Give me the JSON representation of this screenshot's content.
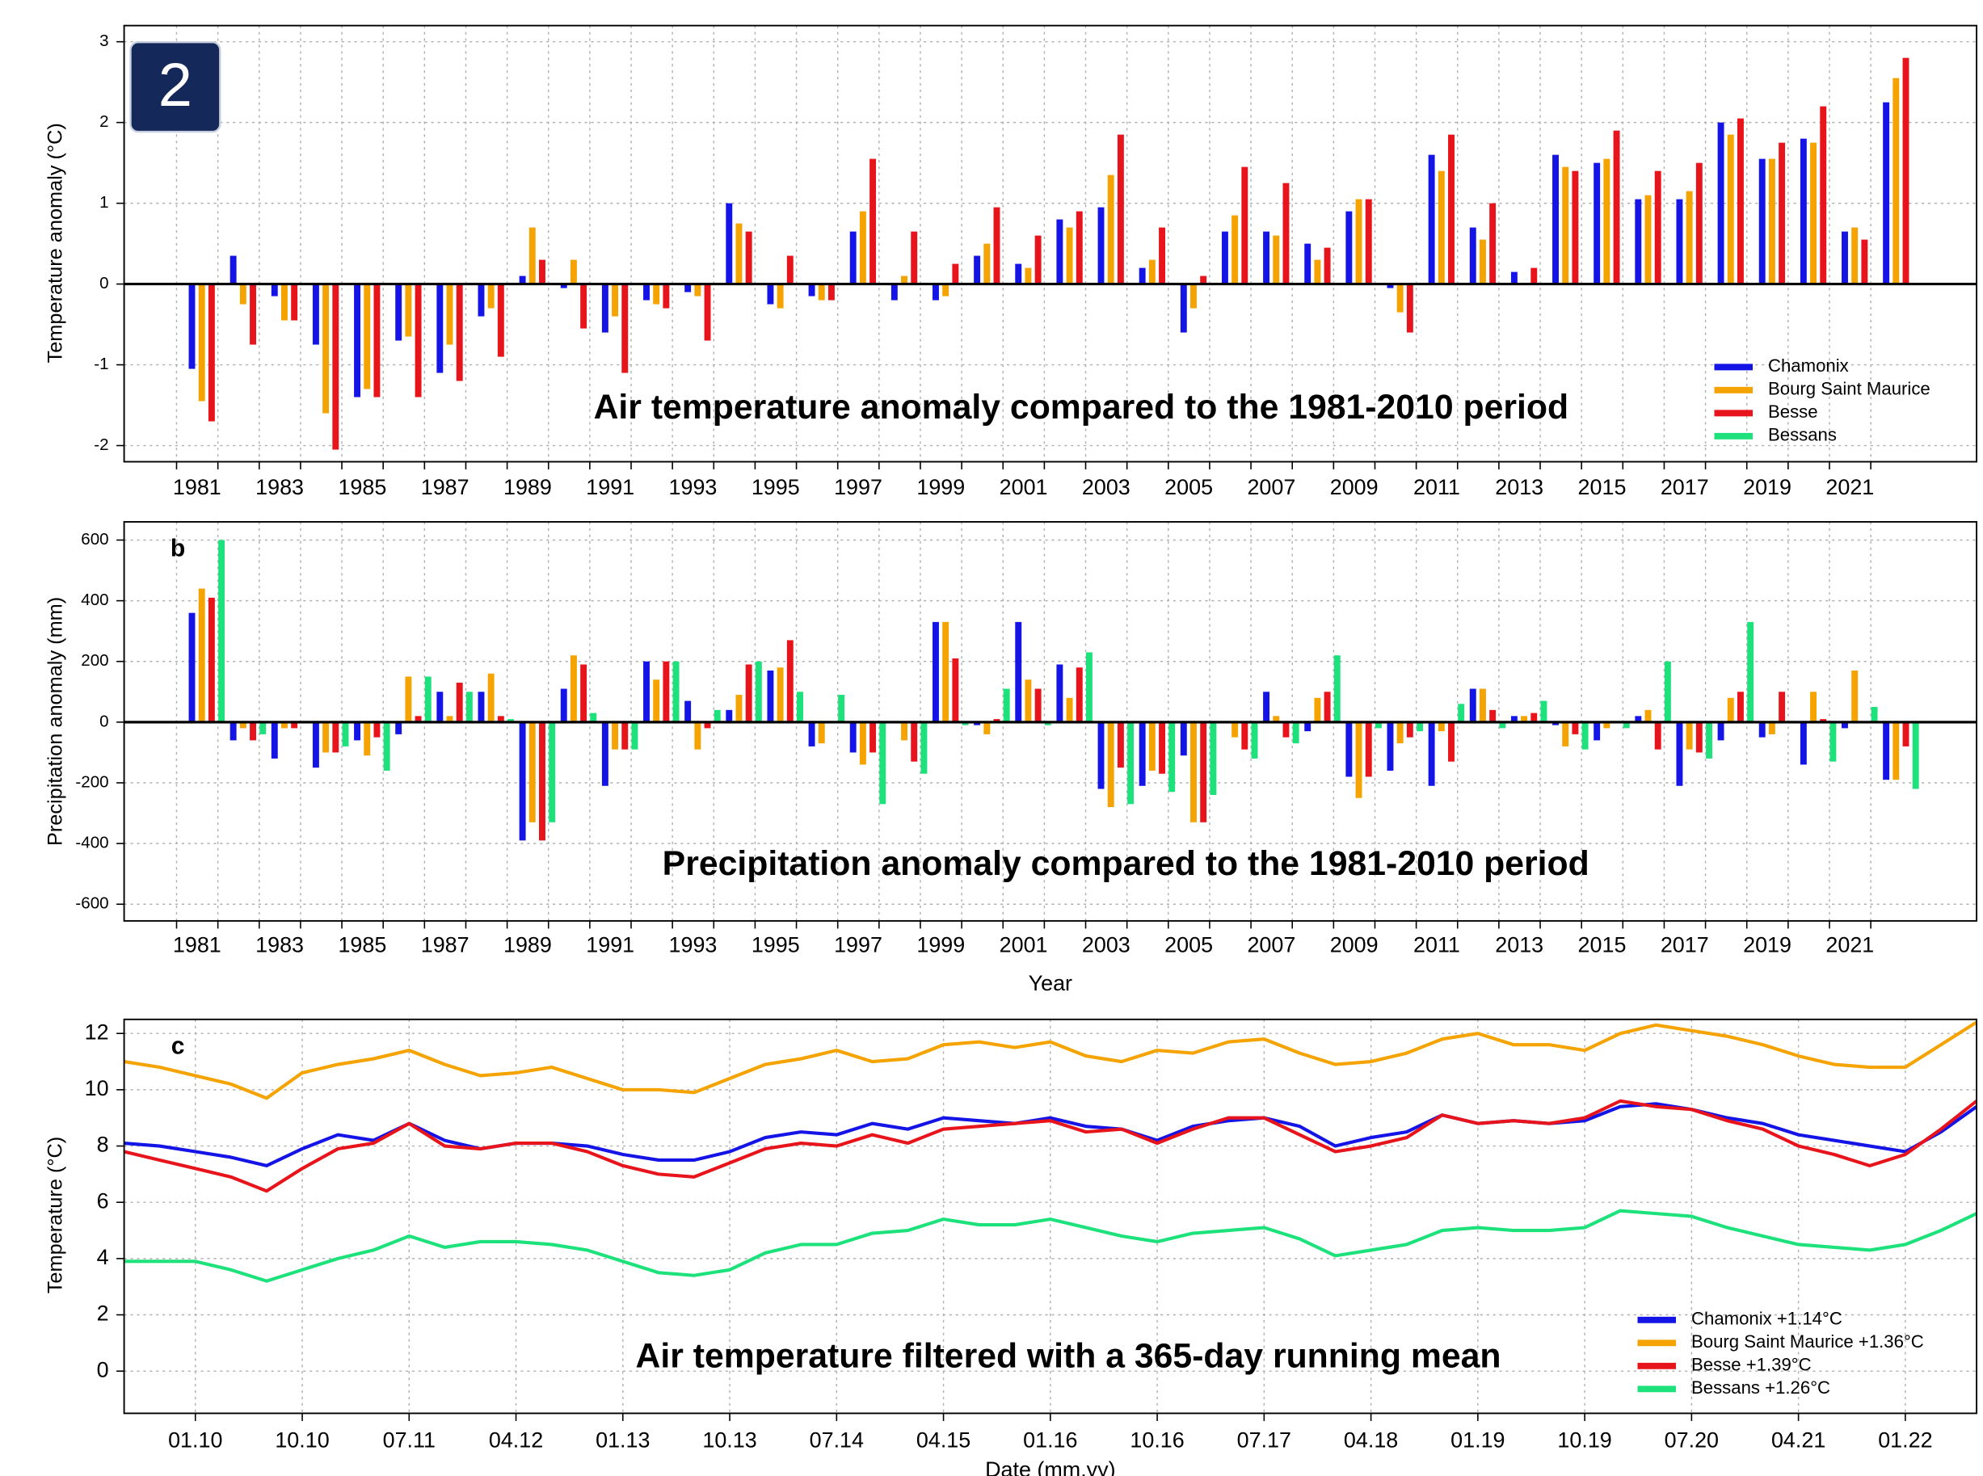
{
  "chart_data": [
    {
      "type": "bar",
      "badge": "2",
      "ylabel": "Temperature anomaly (°C)",
      "annotation": "Air temperature anomaly compared to the 1981-2010 period",
      "categories": [
        "1981",
        null,
        "1983",
        null,
        "1985",
        null,
        "1987",
        null,
        "1989",
        null,
        "1991",
        null,
        "1993",
        null,
        "1995",
        null,
        "1997",
        null,
        "1999",
        null,
        "2001",
        null,
        "2003",
        null,
        "2005",
        null,
        "2007",
        null,
        "2009",
        null,
        "2011",
        null,
        "2013",
        null,
        "2015",
        null,
        "2017",
        null,
        "2019",
        null,
        "2021",
        null
      ],
      "series": [
        {
          "name": "Chamonix",
          "color": "#1414e6",
          "values": [
            -1.05,
            0.35,
            -0.15,
            -0.75,
            -1.4,
            -0.7,
            -1.1,
            -0.4,
            0.1,
            -0.05,
            -0.6,
            -0.2,
            -0.1,
            1.0,
            -0.25,
            -0.15,
            0.65,
            -0.2,
            -0.2,
            0.35,
            0.25,
            0.8,
            0.95,
            0.2,
            -0.6,
            0.65,
            0.65,
            0.5,
            0.9,
            -0.05,
            1.6,
            0.7,
            0.15,
            1.6,
            1.5,
            1.05,
            1.05,
            2.0,
            1.55,
            1.8,
            0.65,
            2.25
          ]
        },
        {
          "name": "Bourg Saint Maurice",
          "color": "#f5a300",
          "values": [
            -1.45,
            -0.25,
            -0.45,
            -1.6,
            -1.3,
            -0.65,
            -0.75,
            -0.3,
            0.7,
            0.3,
            -0.4,
            -0.25,
            -0.15,
            0.75,
            -0.3,
            -0.2,
            0.9,
            0.1,
            -0.15,
            0.5,
            0.2,
            0.7,
            1.35,
            0.3,
            -0.3,
            0.85,
            0.6,
            0.3,
            1.05,
            -0.35,
            1.4,
            0.55,
            0,
            1.45,
            1.55,
            1.1,
            1.15,
            1.85,
            1.55,
            1.75,
            0.7,
            2.55
          ]
        },
        {
          "name": "Besse",
          "color": "#e8141b",
          "values": [
            -1.7,
            -0.75,
            -0.45,
            -2.05,
            -1.4,
            -1.4,
            -1.2,
            -0.9,
            0.3,
            -0.55,
            -1.1,
            -0.3,
            -0.7,
            0.65,
            0.35,
            -0.2,
            1.55,
            0.65,
            0.25,
            0.95,
            0.6,
            0.9,
            1.85,
            0.7,
            0.1,
            1.45,
            1.25,
            0.45,
            1.05,
            -0.6,
            1.85,
            1.0,
            0.2,
            1.4,
            1.9,
            1.4,
            1.5,
            2.05,
            1.75,
            2.2,
            0.55,
            2.8
          ]
        },
        {
          "name": "Bessans",
          "color": "#1de27c",
          "values": [
            null,
            null,
            null,
            null,
            null,
            null,
            null,
            null,
            null,
            null,
            null,
            null,
            null,
            null,
            null,
            null,
            null,
            null,
            null,
            null,
            null,
            null,
            null,
            null,
            null,
            null,
            null,
            null,
            null,
            null,
            null,
            null,
            null,
            null,
            null,
            null,
            null,
            null,
            null,
            null,
            null,
            null
          ]
        }
      ],
      "ylim": [
        -2.2,
        3.2
      ],
      "yticks": [
        -2,
        -1,
        0,
        1,
        2,
        3
      ],
      "grid": true,
      "legend": "lower right"
    },
    {
      "type": "bar",
      "panel_label": "b",
      "ylabel": "Precipitation anomaly (mm)",
      "xlabel": "Year",
      "annotation": "Precipitation anomaly compared to the 1981-2010 period",
      "categories": [
        "1981",
        null,
        "1983",
        null,
        "1985",
        null,
        "1987",
        null,
        "1989",
        null,
        "1991",
        null,
        "1993",
        null,
        "1995",
        null,
        "1997",
        null,
        "1999",
        null,
        "2001",
        null,
        "2003",
        null,
        "2005",
        null,
        "2007",
        null,
        "2009",
        null,
        "2011",
        null,
        "2013",
        null,
        "2015",
        null,
        "2017",
        null,
        "2019",
        null,
        "2021",
        null
      ],
      "series": [
        {
          "name": "Chamonix",
          "color": "#1414e6",
          "values": [
            360,
            -60,
            -120,
            -150,
            -60,
            -40,
            100,
            100,
            -390,
            110,
            -210,
            200,
            70,
            40,
            170,
            -80,
            -100,
            0,
            330,
            -10,
            330,
            190,
            -220,
            -210,
            -110,
            0,
            100,
            -30,
            -180,
            -160,
            -210,
            110,
            20,
            -10,
            -60,
            20,
            -210,
            -60,
            -50,
            -140,
            -20,
            -190
          ]
        },
        {
          "name": "Bourg Saint Maurice",
          "color": "#f5a300",
          "values": [
            440,
            -20,
            -20,
            -100,
            -110,
            150,
            20,
            160,
            -330,
            220,
            -90,
            140,
            -90,
            90,
            180,
            -70,
            -140,
            -60,
            330,
            -40,
            140,
            80,
            -280,
            -160,
            -330,
            -50,
            20,
            80,
            -250,
            -70,
            -30,
            110,
            20,
            -80,
            -20,
            40,
            -90,
            80,
            -40,
            100,
            170,
            -190
          ]
        },
        {
          "name": "Besse",
          "color": "#e8141b",
          "values": [
            410,
            -60,
            -20,
            -100,
            -50,
            20,
            130,
            20,
            -390,
            190,
            -90,
            200,
            -20,
            190,
            270,
            0,
            -100,
            -130,
            210,
            10,
            110,
            180,
            -150,
            -170,
            -330,
            -90,
            -50,
            100,
            -180,
            -50,
            -130,
            40,
            30,
            -40,
            0,
            -90,
            -100,
            100,
            100,
            10,
            0,
            -80
          ]
        },
        {
          "name": "Bessans",
          "color": "#1de27c",
          "values": [
            600,
            -40,
            0,
            -80,
            -160,
            150,
            100,
            10,
            -330,
            30,
            -90,
            200,
            40,
            200,
            100,
            90,
            -270,
            -170,
            -10,
            110,
            -10,
            230,
            -270,
            -230,
            -240,
            -120,
            -70,
            220,
            -20,
            -30,
            60,
            -20,
            70,
            -90,
            -20,
            200,
            -120,
            330,
            0,
            -130,
            50,
            -220
          ]
        }
      ],
      "ylim": [
        -655,
        660
      ],
      "yticks": [
        -600,
        -400,
        -200,
        0,
        200,
        400,
        600
      ],
      "grid": true
    },
    {
      "type": "line",
      "panel_label": "c",
      "ylabel": "Temperature (°C)",
      "xlabel": "Date (mm.yy)",
      "annotation": "Air temperature filtered with a 365-day running mean",
      "x": [
        "2009-07",
        "2009-10",
        "2010-01",
        "2010-04",
        "2010-07",
        "2010-10",
        "2011-01",
        "2011-04",
        "2011-07",
        "2011-10",
        "2012-01",
        "2012-04",
        "2012-07",
        "2012-10",
        "2013-01",
        "2013-04",
        "2013-07",
        "2013-10",
        "2014-01",
        "2014-04",
        "2014-07",
        "2014-10",
        "2015-01",
        "2015-04",
        "2015-07",
        "2015-10",
        "2016-01",
        "2016-04",
        "2016-07",
        "2016-10",
        "2017-01",
        "2017-04",
        "2017-07",
        "2017-10",
        "2018-01",
        "2018-04",
        "2018-07",
        "2018-10",
        "2019-01",
        "2019-04",
        "2019-07",
        "2019-10",
        "2020-01",
        "2020-04",
        "2020-07",
        "2020-10",
        "2021-01",
        "2021-04",
        "2021-07",
        "2021-10",
        "2022-01",
        "2022-04",
        "2022-07"
      ],
      "series": [
        {
          "name": "Chamonix +1.14°C",
          "color": "#1414e6",
          "values": [
            8.1,
            8.0,
            7.8,
            7.6,
            7.3,
            7.9,
            8.4,
            8.2,
            8.8,
            8.2,
            7.9,
            8.1,
            8.1,
            8.0,
            7.7,
            7.5,
            7.5,
            7.8,
            8.3,
            8.5,
            8.4,
            8.8,
            8.6,
            9.0,
            8.9,
            8.8,
            9.0,
            8.7,
            8.6,
            8.2,
            8.7,
            8.9,
            9.0,
            8.7,
            8.0,
            8.3,
            8.5,
            9.1,
            8.8,
            8.9,
            8.8,
            8.9,
            9.4,
            9.5,
            9.3,
            9.0,
            8.8,
            8.4,
            8.2,
            8.0,
            7.8,
            8.5,
            9.4
          ]
        },
        {
          "name": "Bourg Saint Maurice +1.36°C",
          "color": "#f5a300",
          "values": [
            11.0,
            10.8,
            10.5,
            10.2,
            9.7,
            10.6,
            10.9,
            11.1,
            11.4,
            10.9,
            10.5,
            10.6,
            10.8,
            10.4,
            10.0,
            10.0,
            9.9,
            10.4,
            10.9,
            11.1,
            11.4,
            11.0,
            11.1,
            11.6,
            11.7,
            11.5,
            11.7,
            11.2,
            11.0,
            11.4,
            11.3,
            11.7,
            11.8,
            11.3,
            10.9,
            11.0,
            11.3,
            11.8,
            12.0,
            11.6,
            11.6,
            11.4,
            12.0,
            12.3,
            12.1,
            11.9,
            11.6,
            11.2,
            10.9,
            10.8,
            10.8,
            11.6,
            12.4
          ]
        },
        {
          "name": "Besse +1.39°C",
          "color": "#e8141b",
          "values": [
            7.8,
            7.5,
            7.2,
            6.9,
            6.4,
            7.2,
            7.9,
            8.1,
            8.8,
            8.0,
            7.9,
            8.1,
            8.1,
            7.8,
            7.3,
            7.0,
            6.9,
            7.4,
            7.9,
            8.1,
            8.0,
            8.4,
            8.1,
            8.6,
            8.7,
            8.8,
            8.9,
            8.5,
            8.6,
            8.1,
            8.6,
            9.0,
            9.0,
            8.4,
            7.8,
            8.0,
            8.3,
            9.1,
            8.8,
            8.9,
            8.8,
            9.0,
            9.6,
            9.4,
            9.3,
            8.9,
            8.6,
            8.0,
            7.7,
            7.3,
            7.7,
            8.6,
            9.6
          ]
        },
        {
          "name": "Bessans +1.26°C",
          "color": "#1de27c",
          "values": [
            3.9,
            3.9,
            3.9,
            3.6,
            3.2,
            3.6,
            4.0,
            4.3,
            4.8,
            4.4,
            4.6,
            4.6,
            4.5,
            4.3,
            3.9,
            3.5,
            3.4,
            3.6,
            4.2,
            4.5,
            4.5,
            4.9,
            5.0,
            5.4,
            5.2,
            5.2,
            5.4,
            5.1,
            4.8,
            4.6,
            4.9,
            5.0,
            5.1,
            4.7,
            4.1,
            4.3,
            4.5,
            5.0,
            5.1,
            5.0,
            5.0,
            5.1,
            5.7,
            5.6,
            5.5,
            5.1,
            4.8,
            4.5,
            4.4,
            4.3,
            4.5,
            5.0,
            5.6
          ]
        }
      ],
      "xlim": [
        "2009-07",
        "2022-07"
      ],
      "xticks": [
        {
          "value": "2010-01",
          "label": "01.10"
        },
        {
          "value": "2010-10",
          "label": "10.10"
        },
        {
          "value": "2011-07",
          "label": "07.11"
        },
        {
          "value": "2012-04",
          "label": "04.12"
        },
        {
          "value": "2013-01",
          "label": "01.13"
        },
        {
          "value": "2013-10",
          "label": "10.13"
        },
        {
          "value": "2014-07",
          "label": "07.14"
        },
        {
          "value": "2015-04",
          "label": "04.15"
        },
        {
          "value": "2016-01",
          "label": "01.16"
        },
        {
          "value": "2016-10",
          "label": "10.16"
        },
        {
          "value": "2017-07",
          "label": "07.17"
        },
        {
          "value": "2018-04",
          "label": "04.18"
        },
        {
          "value": "2019-01",
          "label": "01.19"
        },
        {
          "value": "2019-10",
          "label": "10.19"
        },
        {
          "value": "2020-07",
          "label": "07.20"
        },
        {
          "value": "2021-04",
          "label": "04.21"
        },
        {
          "value": "2022-01",
          "label": "01.22"
        }
      ],
      "ylim": [
        -1.5,
        12.5
      ],
      "yticks": [
        0,
        2,
        4,
        6,
        8,
        10,
        12
      ],
      "grid": true,
      "legend": "lower right"
    }
  ]
}
